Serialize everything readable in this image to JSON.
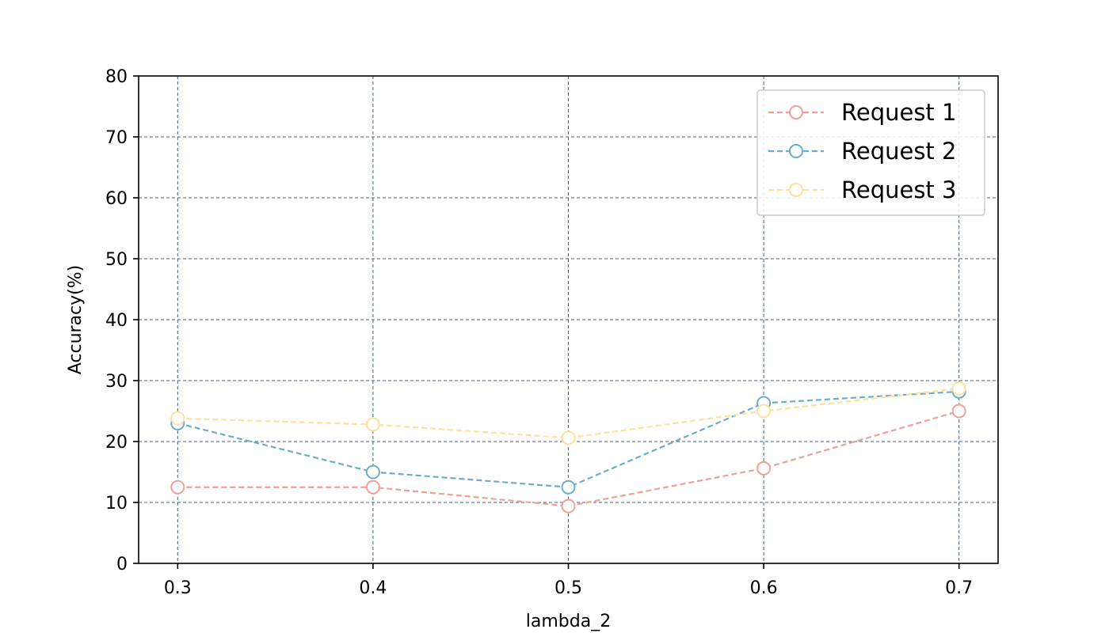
{
  "chart_data": {
    "type": "line",
    "title": "",
    "xlabel": "lambda_2",
    "ylabel": "Accuracy(%)",
    "x": [
      0.3,
      0.4,
      0.5,
      0.6,
      0.7
    ],
    "x_tick_labels": [
      "0.3",
      "0.4",
      "0.5",
      "0.6",
      "0.7"
    ],
    "xlim": [
      0.28,
      0.72
    ],
    "ylim": [
      0,
      80
    ],
    "y_ticks": [
      0,
      10,
      20,
      30,
      40,
      50,
      60,
      70,
      80
    ],
    "y_tick_labels": [
      "0",
      "10",
      "20",
      "30",
      "40",
      "50",
      "60",
      "70",
      "80"
    ],
    "grid": true,
    "line_style": "dashed",
    "marker": "open-circle",
    "legend": {
      "position": "upper-right"
    },
    "series": [
      {
        "name": "Request 1",
        "color": "#f0a097",
        "values": [
          12.5,
          12.5,
          9.4,
          15.6,
          25.0
        ]
      },
      {
        "name": "Request 2",
        "color": "#6aaecb",
        "values": [
          23.0,
          15.0,
          12.5,
          26.3,
          28.2
        ]
      },
      {
        "name": "Request 3",
        "color": "#fde29c",
        "values": [
          23.8,
          22.8,
          20.6,
          25.0,
          28.7
        ]
      }
    ]
  }
}
